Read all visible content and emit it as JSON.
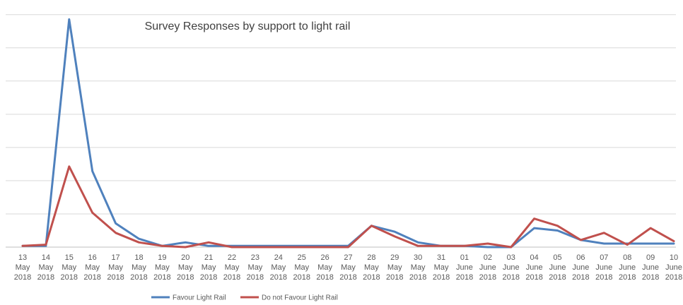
{
  "chart_data": {
    "type": "line",
    "title": "Survey Responses by support to light rail",
    "xlabel": "",
    "ylabel": "",
    "ylim": [
      0,
      100
    ],
    "grid": true,
    "legend_position": "bottom",
    "categories": [
      [
        "13",
        "May",
        "2018"
      ],
      [
        "14",
        "May",
        "2018"
      ],
      [
        "15",
        "May",
        "2018"
      ],
      [
        "16",
        "May",
        "2018"
      ],
      [
        "17",
        "May",
        "2018"
      ],
      [
        "18",
        "May",
        "2018"
      ],
      [
        "19",
        "May",
        "2018"
      ],
      [
        "20",
        "May",
        "2018"
      ],
      [
        "21",
        "May",
        "2018"
      ],
      [
        "22",
        "May",
        "2018"
      ],
      [
        "23",
        "May",
        "2018"
      ],
      [
        "24",
        "May",
        "2018"
      ],
      [
        "25",
        "May",
        "2018"
      ],
      [
        "26",
        "May",
        "2018"
      ],
      [
        "27",
        "May",
        "2018"
      ],
      [
        "28",
        "May",
        "2018"
      ],
      [
        "29",
        "May",
        "2018"
      ],
      [
        "30",
        "May",
        "2018"
      ],
      [
        "31",
        "May",
        "2018"
      ],
      [
        "01",
        "June",
        "2018"
      ],
      [
        "02",
        "June",
        "2018"
      ],
      [
        "03",
        "June",
        "2018"
      ],
      [
        "04",
        "June",
        "2018"
      ],
      [
        "05",
        "June",
        "2018"
      ],
      [
        "06",
        "June",
        "2018"
      ],
      [
        "07",
        "June",
        "2018"
      ],
      [
        "08",
        "June",
        "2018"
      ],
      [
        "09",
        "June",
        "2018"
      ],
      [
        "10",
        "June",
        "2018"
      ]
    ],
    "series": [
      {
        "name": "Favour Light Rail",
        "color": "#4F81BD",
        "values": [
          0.5,
          0.5,
          96,
          32,
          10,
          3.5,
          0.5,
          2,
          0.5,
          0.5,
          0.5,
          0.5,
          0.5,
          0.5,
          0.5,
          9,
          6.5,
          2,
          0.5,
          0.5,
          0,
          0,
          8,
          7,
          3,
          1.5,
          1.5,
          1.5,
          1.5
        ]
      },
      {
        "name": "Do not Favour Light Rail",
        "color": "#C0504D",
        "values": [
          0.5,
          1,
          34,
          14.5,
          6,
          2,
          0.5,
          0,
          2,
          0,
          0,
          0,
          0,
          0,
          0,
          9,
          4.5,
          0.5,
          0.5,
          0.5,
          1.5,
          0,
          12,
          9,
          3,
          6,
          1,
          8,
          2.5
        ]
      }
    ]
  }
}
